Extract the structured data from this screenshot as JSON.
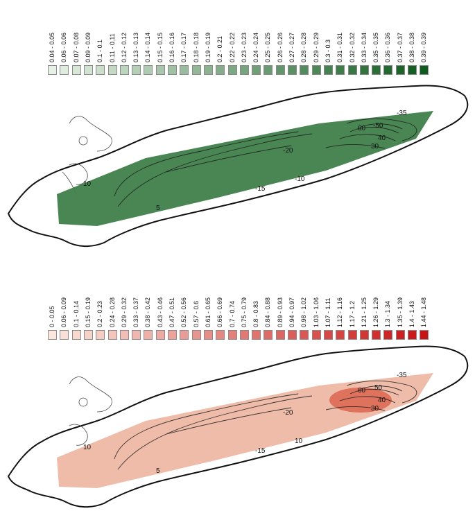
{
  "legend_top": {
    "ranges": [
      "0.04 - 0.05",
      "0.06 - 0.06",
      "0.07 - 0.08",
      "0.09 - 0.09",
      "0.1 - 0.1",
      "0.11 - 0.11",
      "0.12 - 0.12",
      "0.13 - 0.13",
      "0.14 - 0.14",
      "0.15 - 0.15",
      "0.16 - 0.16",
      "0.17 - 0.17",
      "0.18 - 0.18",
      "0.19 - 0.19",
      "0.2 - 0.21",
      "0.22 - 0.22",
      "0.23 - 0.23",
      "0.24 - 0.24",
      "0.25 - 0.25",
      "0.26 - 0.26",
      "0.27 - 0.27",
      "0.28 - 0.28",
      "0.29 - 0.29",
      "0.3 - 0.3",
      "0.31 - 0.31",
      "0.32 - 0.32",
      "0.33 - 0.34",
      "0.35 - 0.35",
      "0.36 - 0.36",
      "0.37 - 0.37",
      "0.38 - 0.38",
      "0.39 - 0.39"
    ],
    "color_start": "#e6f2e4",
    "color_end": "#0f5a1e"
  },
  "legend_bottom": {
    "ranges": [
      "0 - 0.05",
      "0.06 - 0.09",
      "0.1 - 0.14",
      "0.15 - 0.19",
      "0.2 - 0.23",
      "0.24 - 0.28",
      "0.29 - 0.32",
      "0.33 - 0.37",
      "0.38 - 0.42",
      "0.43 - 0.46",
      "0.47 - 0.51",
      "0.52 - 0.56",
      "0.57 - 0.6",
      "0.61 - 0.65",
      "0.66 - 0.69",
      "0.7 - 0.74",
      "0.75 - 0.79",
      "0.8 - 0.83",
      "0.84 - 0.88",
      "0.89 - 0.93",
      "0.94 - 0.97",
      "0.98 - 1.02",
      "1.03 - 1.06",
      "1.07 - 1.11",
      "1.12 - 1.16",
      "1.17 - 1.2",
      "1.21 - 1.25",
      "1.26 - 1.29",
      "1.3 - 1.34",
      "1.35 - 1.39",
      "1.4 - 1.43",
      "1.44 - 1.48"
    ],
    "color_start": "#fbe7dc",
    "color_end": "#c81414"
  },
  "map_top": {
    "fill_color": "#3f7f4a",
    "fill_dark": "#2a6a35",
    "depth_labels": [
      "-35",
      "60",
      "-50",
      "-20",
      "40",
      "30",
      "10",
      "-15",
      "-10",
      "5"
    ]
  },
  "map_bottom": {
    "fill_color": "#eeb8a4",
    "fill_dark": "#d85a40",
    "depth_labels": [
      "-35",
      "60",
      "50",
      "-20",
      "40",
      "30",
      "10",
      "-15",
      "10",
      "5"
    ]
  }
}
